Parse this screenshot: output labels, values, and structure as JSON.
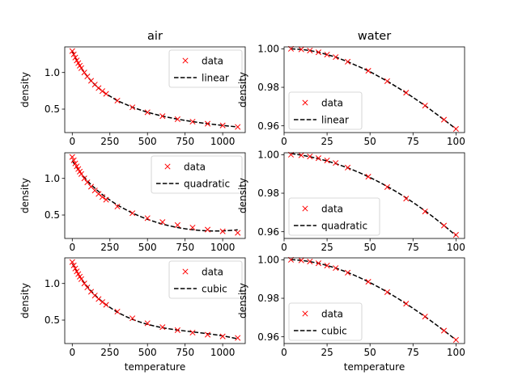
{
  "chart_data": [
    {
      "type": "scatter",
      "column_title": "air",
      "xlabel": "",
      "ylabel": "density",
      "xlim": [
        -50,
        1150
      ],
      "ylim": [
        0.18,
        1.35
      ],
      "xticks": [
        0,
        250,
        500,
        750,
        1000
      ],
      "yticks": [
        0.5,
        1.0
      ],
      "legend_position": "upper-right",
      "series": [
        {
          "name": "data",
          "style": "marker-x",
          "color": "#ff0000",
          "x": [
            0,
            10,
            20,
            30,
            40,
            50,
            60,
            80,
            100,
            125,
            150,
            175,
            200,
            225,
            300,
            400,
            500,
            600,
            700,
            800,
            900,
            1000,
            1100
          ],
          "y": [
            1.293,
            1.247,
            1.205,
            1.165,
            1.128,
            1.093,
            1.06,
            1.0,
            0.946,
            0.887,
            0.835,
            0.788,
            0.746,
            0.709,
            0.616,
            0.525,
            0.457,
            0.404,
            0.363,
            0.329,
            0.301,
            0.277,
            0.257
          ]
        },
        {
          "name": "linear",
          "style": "dashed-line",
          "color": "#000000"
        }
      ]
    },
    {
      "type": "scatter",
      "column_title": "water",
      "xlabel": "",
      "ylabel": "density",
      "xlim": [
        0,
        105
      ],
      "ylim": [
        0.9565,
        1.001
      ],
      "xticks": [
        0,
        25,
        50,
        75,
        100
      ],
      "yticks": [
        0.96,
        0.98,
        1.0
      ],
      "legend_position": "lower-left",
      "series": [
        {
          "name": "data",
          "style": "marker-x",
          "color": "#ff0000",
          "x": [
            4,
            10,
            15,
            20,
            25,
            30,
            37,
            49,
            60,
            71,
            82,
            93,
            100
          ],
          "y": [
            1.0,
            0.9997,
            0.9991,
            0.9982,
            0.997,
            0.9957,
            0.9933,
            0.9886,
            0.9832,
            0.9772,
            0.9705,
            0.9632,
            0.9584
          ]
        },
        {
          "name": "linear",
          "style": "dashed-line",
          "color": "#000000"
        }
      ]
    },
    {
      "type": "scatter",
      "column_title": "",
      "xlabel": "",
      "ylabel": "density",
      "xlim": [
        -50,
        1150
      ],
      "ylim": [
        0.18,
        1.35
      ],
      "xticks": [
        0,
        250,
        500,
        750,
        1000
      ],
      "yticks": [
        0.5,
        1.0
      ],
      "legend_position": "upper-right",
      "series": [
        {
          "name": "data",
          "style": "marker-x",
          "color": "#ff0000",
          "x": [
            0,
            10,
            20,
            30,
            40,
            50,
            60,
            80,
            100,
            125,
            150,
            175,
            200,
            225,
            300,
            400,
            500,
            600,
            700,
            800,
            900,
            1000,
            1100
          ],
          "y": [
            1.293,
            1.247,
            1.205,
            1.165,
            1.128,
            1.093,
            1.06,
            1.0,
            0.946,
            0.887,
            0.835,
            0.788,
            0.746,
            0.709,
            0.616,
            0.525,
            0.457,
            0.404,
            0.363,
            0.329,
            0.301,
            0.277,
            0.257
          ]
        },
        {
          "name": "quadratic",
          "style": "dashed-line",
          "color": "#000000"
        }
      ]
    },
    {
      "type": "scatter",
      "column_title": "",
      "xlabel": "",
      "ylabel": "density",
      "xlim": [
        0,
        105
      ],
      "ylim": [
        0.9565,
        1.001
      ],
      "xticks": [
        0,
        25,
        50,
        75,
        100
      ],
      "yticks": [
        0.96,
        0.98,
        1.0
      ],
      "legend_position": "lower-left",
      "series": [
        {
          "name": "data",
          "style": "marker-x",
          "color": "#ff0000",
          "x": [
            4,
            10,
            15,
            20,
            25,
            30,
            37,
            49,
            60,
            71,
            82,
            93,
            100
          ],
          "y": [
            1.0,
            0.9997,
            0.9991,
            0.9982,
            0.997,
            0.9957,
            0.9933,
            0.9886,
            0.9832,
            0.9772,
            0.9705,
            0.9632,
            0.9584
          ]
        },
        {
          "name": "quadratic",
          "style": "dashed-line",
          "color": "#000000"
        }
      ]
    },
    {
      "type": "scatter",
      "column_title": "",
      "xlabel": "temperature",
      "ylabel": "density",
      "xlim": [
        -50,
        1150
      ],
      "ylim": [
        0.18,
        1.35
      ],
      "xticks": [
        0,
        250,
        500,
        750,
        1000
      ],
      "yticks": [
        0.5,
        1.0
      ],
      "legend_position": "upper-right",
      "series": [
        {
          "name": "data",
          "style": "marker-x",
          "color": "#ff0000",
          "x": [
            0,
            10,
            20,
            30,
            40,
            50,
            60,
            80,
            100,
            125,
            150,
            175,
            200,
            225,
            300,
            400,
            500,
            600,
            700,
            800,
            900,
            1000,
            1100
          ],
          "y": [
            1.293,
            1.247,
            1.205,
            1.165,
            1.128,
            1.093,
            1.06,
            1.0,
            0.946,
            0.887,
            0.835,
            0.788,
            0.746,
            0.709,
            0.616,
            0.525,
            0.457,
            0.404,
            0.363,
            0.329,
            0.301,
            0.277,
            0.257
          ]
        },
        {
          "name": "cubic",
          "style": "dashed-line",
          "color": "#000000"
        }
      ]
    },
    {
      "type": "scatter",
      "column_title": "",
      "xlabel": "temperature",
      "ylabel": "density",
      "xlim": [
        0,
        105
      ],
      "ylim": [
        0.9565,
        1.001
      ],
      "xticks": [
        0,
        25,
        50,
        75,
        100
      ],
      "yticks": [
        0.96,
        0.98,
        1.0
      ],
      "legend_position": "lower-left",
      "series": [
        {
          "name": "data",
          "style": "marker-x",
          "color": "#ff0000",
          "x": [
            4,
            10,
            15,
            20,
            25,
            30,
            37,
            49,
            60,
            71,
            82,
            93,
            100
          ],
          "y": [
            1.0,
            0.9997,
            0.9991,
            0.9982,
            0.997,
            0.9957,
            0.9933,
            0.9886,
            0.9832,
            0.9772,
            0.9705,
            0.9632,
            0.9584
          ]
        },
        {
          "name": "cubic",
          "style": "dashed-line",
          "color": "#000000"
        }
      ]
    }
  ]
}
